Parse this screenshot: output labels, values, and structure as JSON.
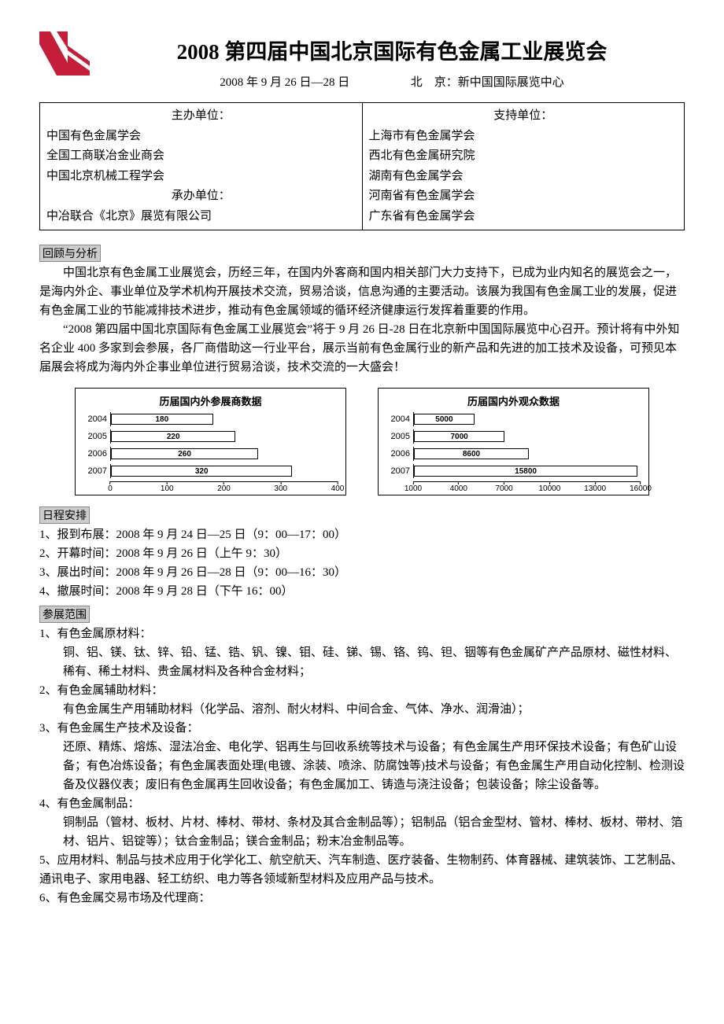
{
  "title": "2008 第四届中国北京国际有色金属工业展览会",
  "date_line": "2008 年 9 月 26 日—28 日",
  "venue_line": "北　京：新中国国际展览中心",
  "org": {
    "left": [
      {
        "head": true,
        "text": "主办单位："
      },
      {
        "text": "中国有色金属学会"
      },
      {
        "text": "全国工商联冶金业商会"
      },
      {
        "text": "中国北京机械工程学会"
      },
      {
        "head": true,
        "text": "承办单位："
      },
      {
        "text": "中冶联合《北京》展览有限公司"
      }
    ],
    "right": [
      {
        "head": true,
        "text": "支持单位："
      },
      {
        "text": "上海市有色金属学会"
      },
      {
        "text": "西北有色金属研究院"
      },
      {
        "text": "湖南有色金属学会"
      },
      {
        "text": "河南省有色金属学会"
      },
      {
        "text": "广东省有色金属学会"
      }
    ]
  },
  "section_review": "回顾与分析",
  "para1": "中国北京有色金属工业展览会，历经三年，在国内外客商和国内相关部门大力支持下，已成为业内知名的展览会之一，是海内外企、事业单位及学术机构开展技术交流，贸易洽谈，信息沟通的主要活动。该展为我国有色金属工业的发展，促进有色金属工业的节能减排技术进步，推动有色金属领域的循环经济健康运行发挥着重要的作用。",
  "para2": "“2008 第四届中国北京国际有色金属工业展览会”将于 9 月 26 日-28 日在北京新中国国际展览中心召开。预计将有中外知名企业 400 多家到会参展，各厂商借助这一行业平台，展示当前有色金属行业的新产品和先进的加工技术及设备，可预见本届展会将成为海内外企事业单位进行贸易洽谈，技术交流的一大盛会！",
  "chart1": {
    "title": "历届国内外参展商数据",
    "years": [
      "2004",
      "2005",
      "2006",
      "2007"
    ],
    "values": [
      180,
      220,
      260,
      320
    ],
    "xmax": 400,
    "xticks": [
      0,
      100,
      200,
      300,
      400
    ],
    "bar_color": "#ffffff",
    "border_color": "#000000"
  },
  "chart2": {
    "title": "历届国内外观众数据",
    "years": [
      "2004",
      "2005",
      "2006",
      "2007"
    ],
    "values": [
      5000,
      7000,
      8600,
      15800
    ],
    "xmin": 1000,
    "xmax": 16000,
    "xticks": [
      1000,
      4000,
      7000,
      10000,
      13000,
      16000
    ],
    "bar_color": "#ffffff",
    "border_color": "#000000"
  },
  "section_schedule": "日程安排",
  "schedule": [
    "1、报到布展：2008 年 9 月 24 日—25 日（9：00—17：00）",
    "2、开幕时间：2008 年 9 月 26 日（上午 9：30）",
    "3、展出时间：2008 年 9 月 26 日—28 日（9：00—16：30）",
    "4、撤展时间：2008 年 9 月 28 日（下午 16：00）"
  ],
  "section_scope": "参展范围",
  "scope": [
    {
      "n": "1、",
      "h": "有色金属原材料：",
      "b": "铜、铝、镁、钛、锌、铅、锰、锆、钒、镍、钼、硅、锑、锡、铬、钨、钽、铟等有色金属矿产产品原材、磁性材料、稀有、稀土材料、贵金属材料及各种合金材料；"
    },
    {
      "n": "2、",
      "h": "有色金属辅助材料：",
      "b": "有色金属生产用辅助材料（化学品、溶剂、耐火材料、中间合金、气体、净水、润滑油）；"
    },
    {
      "n": "3、",
      "h": "有色金属生产技术及设备：",
      "b": "还原、精炼、熔炼、湿法冶金、电化学、铝再生与回收系统等技术与设备；有色金属生产用环保技术设备；有色矿山设备；有色冶炼设备；有色金属表面处理(电镀、涂装、喷涂、防腐蚀等)技术与设备；有色金属生产用自动化控制、检测设备及仪器仪表；废旧有色金属再生回收设备；有色金属加工、铸造与浇注设备；包装设备；除尘设备等。"
    },
    {
      "n": "4、",
      "h": "有色金属制品：",
      "b": "铜制品（管材、板材、片材、棒材、带材、条材及其合金制品等）；铝制品（铝合金型材、管材、棒材、板材、带材、箔材、铝片、铝锭等）；钛合金制品；镁合金制品；粉末冶金制品等。"
    },
    {
      "n": "5、",
      "h": "",
      "b": "应用材料、制品与技术应用于化学化工、航空航天、汽车制造、医疗装备、生物制药、体育器械、建筑装饰、工艺制品、通讯电子、家用电器、轻工纺织、电力等各领域新型材料及应用产品与技术。"
    },
    {
      "n": "6、",
      "h": "有色金属交易市场及代理商：",
      "b": ""
    }
  ]
}
